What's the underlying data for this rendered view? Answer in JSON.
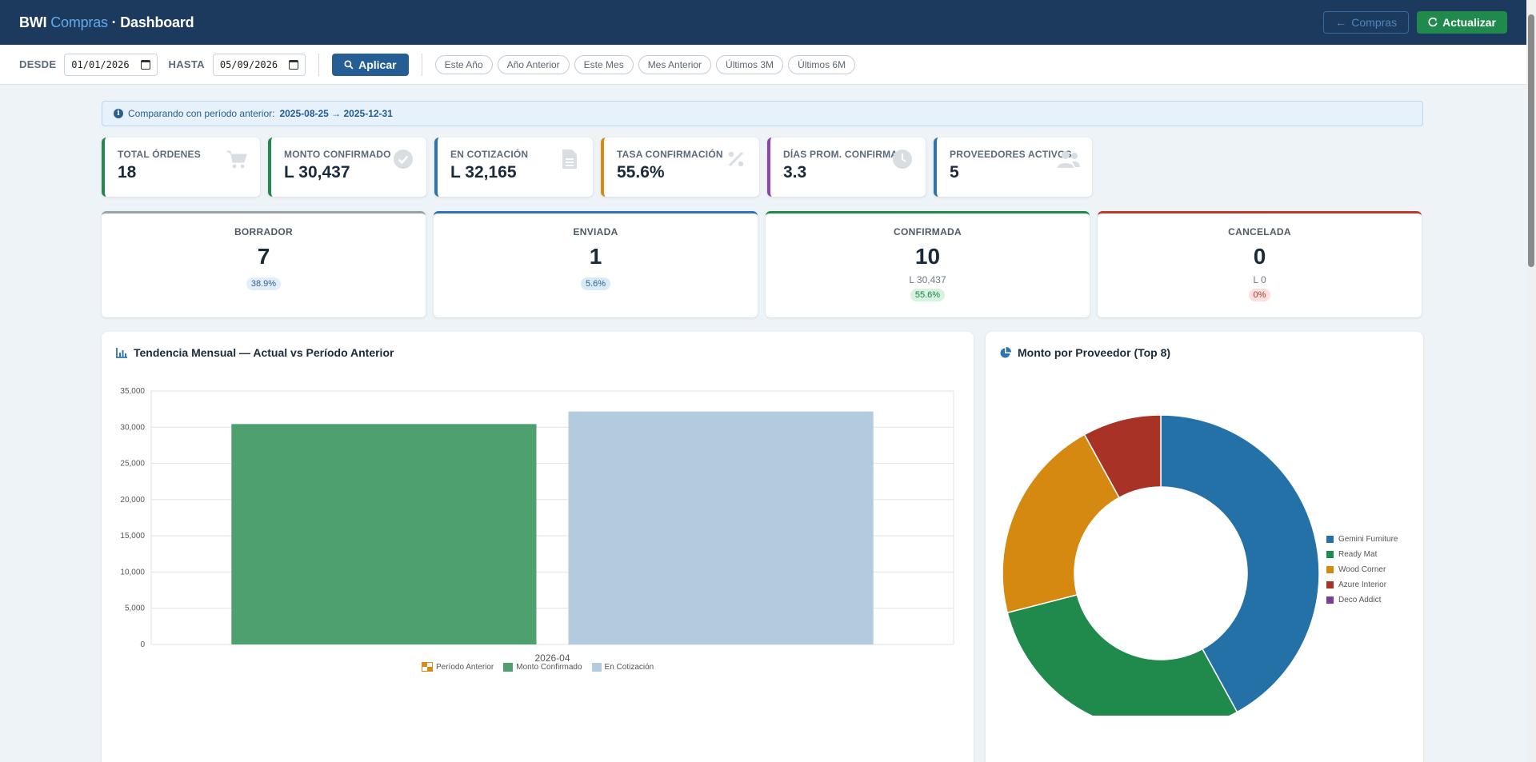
{
  "header": {
    "brand_main": "BWI",
    "brand_accent": "Compras",
    "brand_suffix": "· Dashboard",
    "back_label": "Compras",
    "refresh_label": "Actualizar"
  },
  "filters": {
    "from_label": "DESDE",
    "from_value": "01/01/2026",
    "to_label": "HASTA",
    "to_value": "05/09/2026",
    "apply_label": "Aplicar",
    "presets": [
      "Este Año",
      "Año Anterior",
      "Este Mes",
      "Mes Anterior",
      "Últimos 3M",
      "Últimos 6M"
    ]
  },
  "info": {
    "prefix": "Comparando con período anterior:",
    "range": "2025-08-25 → 2025-12-31"
  },
  "kpis": [
    {
      "label": "TOTAL ÓRDENES",
      "value": "18",
      "color": "#1f8a4c",
      "icon": "cart-icon"
    },
    {
      "label": "MONTO CONFIRMADO",
      "value": "L 30,437",
      "color": "#1f8a4c",
      "icon": "check-circle-icon"
    },
    {
      "label": "EN COTIZACIÓN",
      "value": "L 32,165",
      "color": "#2f73b5",
      "icon": "document-icon"
    },
    {
      "label": "TASA CONFIRMACIÓN",
      "value": "55.6%",
      "color": "#d98a14",
      "icon": "percent-icon"
    },
    {
      "label": "DÍAS PROM. CONFIRMAR",
      "value": "3.3",
      "color": "#8e44ad",
      "icon": "clock-icon"
    },
    {
      "label": "PROVEEDORES ACTIVOS",
      "value": "5",
      "color": "#2f73b5",
      "icon": "users-icon"
    }
  ],
  "status": [
    {
      "label": "BORRADOR",
      "value": "7",
      "amount": "",
      "pill": "38.9%",
      "color": "#95a5a6",
      "pill_bg": "#e3eefb",
      "pill_fg": "#2f5f8f"
    },
    {
      "label": "ENVIADA",
      "value": "1",
      "amount": "",
      "pill": "5.6%",
      "color": "#2f73b5",
      "pill_bg": "#d9eaf7",
      "pill_fg": "#2f5f8f"
    },
    {
      "label": "CONFIRMADA",
      "value": "10",
      "amount": "L 30,437",
      "pill": "55.6%",
      "color": "#1f8a4c",
      "pill_bg": "#d6f3e1",
      "pill_fg": "#1f7a44"
    },
    {
      "label": "CANCELADA",
      "value": "0",
      "amount": "L 0",
      "pill": "0%",
      "color": "#c0392b",
      "pill_bg": "#fbe0de",
      "pill_fg": "#b03a2e"
    }
  ],
  "trend": {
    "title": "Tendencia Mensual — Actual vs Período Anterior"
  },
  "pie": {
    "title": "Monto por Proveedor (Top 8)"
  },
  "chart_data": [
    {
      "type": "bar",
      "title": "Tendencia Mensual — Actual vs Período Anterior",
      "categories": [
        "2026-04"
      ],
      "series": [
        {
          "name": "Período Anterior",
          "values": [
            0
          ],
          "color": "#d98a14"
        },
        {
          "name": "Monto Confirmado",
          "values": [
            30437
          ],
          "color": "#4fa06f"
        },
        {
          "name": "En Cotización",
          "values": [
            32165
          ],
          "color": "#b3cbdf"
        }
      ],
      "ylim": [
        0,
        35000
      ],
      "yticks": [
        "0",
        "5,000",
        "10,000",
        "15,000",
        "20,000",
        "25,000",
        "30,000",
        "35,000"
      ],
      "grid": true,
      "legend": "bottom"
    },
    {
      "type": "pie",
      "title": "Monto por Proveedor (Top 8)",
      "donut": true,
      "labels": [
        "Gemini Furniture",
        "Ready Mat",
        "Wood Corner",
        "Azure Interior",
        "Deco Addict"
      ],
      "values": [
        42,
        29,
        21,
        8,
        0
      ],
      "colors": [
        "#2471a8",
        "#1f8a4c",
        "#d68910",
        "#a93226",
        "#7d3c98"
      ],
      "legend": "right"
    }
  ]
}
